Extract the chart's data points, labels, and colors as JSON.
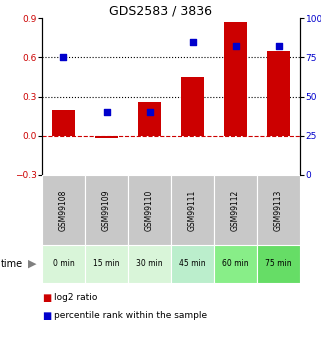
{
  "title": "GDS2583 / 3836",
  "categories": [
    "GSM99108",
    "GSM99109",
    "GSM99110",
    "GSM99111",
    "GSM99112",
    "GSM99113"
  ],
  "time_labels": [
    "0 min",
    "15 min",
    "30 min",
    "45 min",
    "60 min",
    "75 min"
  ],
  "log2_ratio": [
    0.2,
    -0.02,
    0.26,
    0.45,
    0.87,
    0.65
  ],
  "percentile_rank": [
    75,
    40,
    40,
    85,
    82,
    82
  ],
  "bar_color": "#cc0000",
  "dot_color": "#0000cc",
  "left_ylim": [
    -0.3,
    0.9
  ],
  "right_ylim": [
    0,
    100
  ],
  "left_yticks": [
    -0.3,
    0,
    0.3,
    0.6,
    0.9
  ],
  "right_yticks": [
    0,
    25,
    50,
    75,
    100
  ],
  "hline_y": [
    0.3,
    0.6
  ],
  "zero_line_y": 0,
  "time_colors": [
    "#d9f5d9",
    "#d9f5d9",
    "#d9f5d9",
    "#bbeecc",
    "#88ee88",
    "#66dd66"
  ],
  "sample_bg": "#c8c8c8",
  "legend_red_label": "log2 ratio",
  "legend_blue_label": "percentile rank within the sample"
}
